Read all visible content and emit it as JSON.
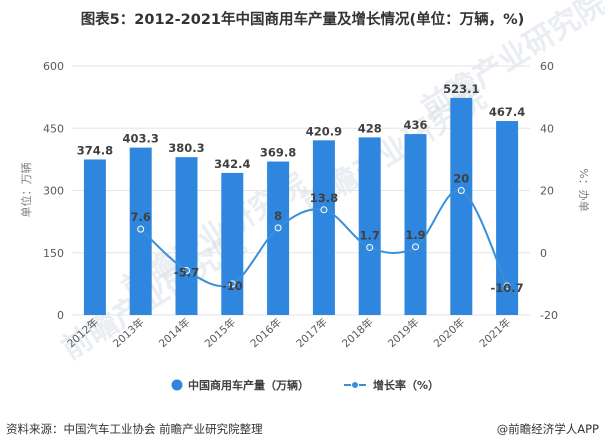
{
  "title": "图表5：2012-2021年中国商用车产量及增长情况(单位：万辆，%)",
  "watermark": "前瞻产业研究院",
  "footer": {
    "source": "资料来源：中国汽车工业协会 前瞻产业研究院整理",
    "credit": "@前瞻经济学人APP"
  },
  "colors": {
    "bar": "#2E86DE",
    "line": "#3A8FD9",
    "grid": "#E6E6E6"
  },
  "chart_data": {
    "type": "bar",
    "categories": [
      "2012年",
      "2013年",
      "2014年",
      "2015年",
      "2016年",
      "2017年",
      "2018年",
      "2019年",
      "2020年",
      "2021年"
    ],
    "series": [
      {
        "name": "中国商用车产量（万辆）",
        "type": "bar",
        "axis": "left",
        "values": [
          374.8,
          403.3,
          380.3,
          342.4,
          369.8,
          420.9,
          428,
          436,
          523.1,
          467.4
        ]
      },
      {
        "name": "增长率（%）",
        "type": "line",
        "axis": "right",
        "values": [
          null,
          7.6,
          -5.7,
          -10,
          8,
          13.8,
          1.7,
          1.9,
          20,
          -10.7
        ]
      }
    ],
    "ylabel": "单位：万辆",
    "y2label": "%：办单",
    "ylim": [
      0,
      600
    ],
    "yticks": [
      0,
      150,
      300,
      450,
      600
    ],
    "y2lim": [
      -20,
      60
    ],
    "y2ticks": [
      -20,
      0,
      20,
      40,
      60
    ],
    "grid": true,
    "legend": "bottom"
  }
}
